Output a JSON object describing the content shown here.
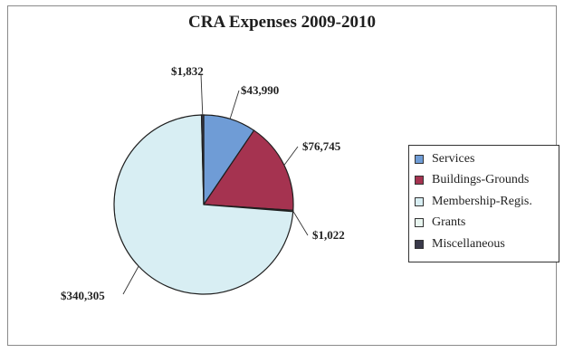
{
  "chart_data": {
    "type": "pie",
    "title": "CRA Expenses 2009-2010",
    "slices": [
      {
        "name": "Services",
        "value": 43990,
        "label": "$43,990",
        "color": "#6f9cd6"
      },
      {
        "name": "Buildings-Grounds",
        "value": 76745,
        "label": "$76,745",
        "color": "#a53350"
      },
      {
        "name": "Membership-Regis.",
        "value": 340305,
        "label": "$340,305",
        "color": "#d8eef3"
      },
      {
        "name": "Grants",
        "value": 1022,
        "label": "$1,022",
        "color": "#e8f5ef"
      },
      {
        "name": "Miscellaneous",
        "value": 1832,
        "label": "$1,832",
        "color": "#3a3a4a"
      }
    ],
    "value_labels": "outside",
    "legend_position": "right"
  },
  "legend_items": [
    "Services",
    "Buildings-Grounds",
    "Membership-Regis.",
    "Grants",
    "Miscellaneous"
  ]
}
